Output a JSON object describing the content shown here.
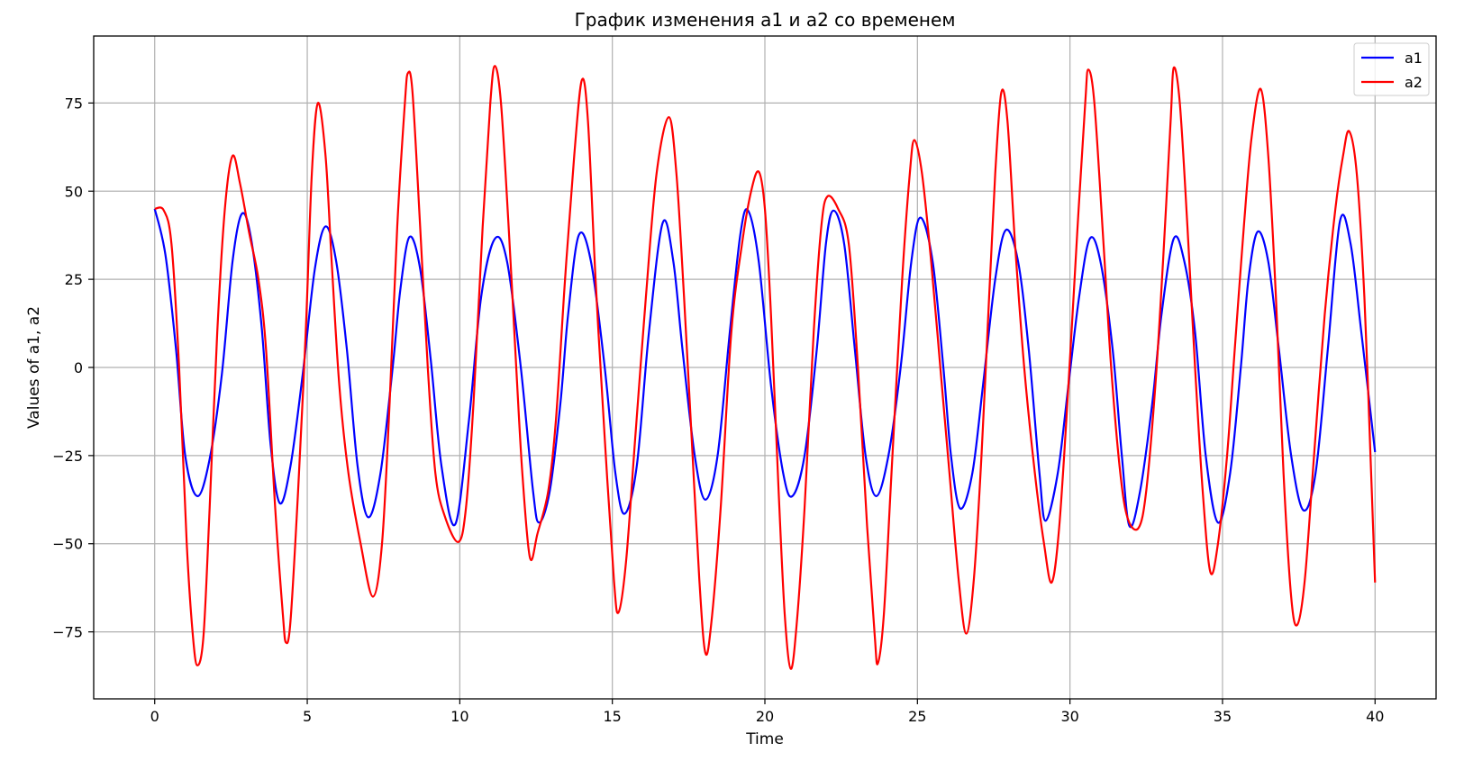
{
  "chart_data": {
    "type": "line",
    "title": "График изменения a1 и a2 со временем",
    "xlabel": "Time",
    "ylabel": "Values of a1, a2",
    "xlim": [
      -2,
      42
    ],
    "ylim": [
      -94,
      94
    ],
    "xticks": [
      0,
      5,
      10,
      15,
      20,
      25,
      30,
      35,
      40
    ],
    "yticks": [
      -75,
      -50,
      -25,
      0,
      25,
      50,
      75
    ],
    "ytick_labels": [
      "−75",
      "−50",
      "−25",
      "0",
      "25",
      "50",
      "75"
    ],
    "grid": true,
    "legend_position": "top-right",
    "series": [
      {
        "name": "a1",
        "color": "#0000ff",
        "points": [
          [
            0,
            45
          ],
          [
            0.35,
            32
          ],
          [
            0.7,
            5
          ],
          [
            1.0,
            -25
          ],
          [
            1.4,
            -36.5
          ],
          [
            1.8,
            -26
          ],
          [
            2.2,
            -2
          ],
          [
            2.55,
            30
          ],
          [
            2.85,
            43.5
          ],
          [
            3.15,
            37
          ],
          [
            3.5,
            12
          ],
          [
            3.8,
            -22
          ],
          [
            4.1,
            -38.5
          ],
          [
            4.45,
            -28
          ],
          [
            4.85,
            -2
          ],
          [
            5.25,
            28
          ],
          [
            5.6,
            40
          ],
          [
            5.95,
            30
          ],
          [
            6.3,
            5
          ],
          [
            6.65,
            -28
          ],
          [
            7.0,
            -42.5
          ],
          [
            7.4,
            -30
          ],
          [
            7.8,
            0
          ],
          [
            8.05,
            22
          ],
          [
            8.35,
            37
          ],
          [
            8.7,
            28
          ],
          [
            9.05,
            2
          ],
          [
            9.4,
            -28
          ],
          [
            9.85,
            -44.5
          ],
          [
            10.3,
            -15
          ],
          [
            10.7,
            20
          ],
          [
            11.15,
            36.5
          ],
          [
            11.55,
            30
          ],
          [
            12.0,
            0
          ],
          [
            12.4,
            -35
          ],
          [
            12.6,
            -44
          ],
          [
            12.95,
            -35
          ],
          [
            13.3,
            -10
          ],
          [
            13.55,
            15
          ],
          [
            13.9,
            37.5
          ],
          [
            14.3,
            30
          ],
          [
            14.75,
            0
          ],
          [
            15.1,
            -30
          ],
          [
            15.4,
            -41.5
          ],
          [
            15.8,
            -28
          ],
          [
            16.2,
            10
          ],
          [
            16.65,
            41
          ],
          [
            17.0,
            30
          ],
          [
            17.3,
            5
          ],
          [
            17.7,
            -25
          ],
          [
            18.05,
            -37.5
          ],
          [
            18.45,
            -25
          ],
          [
            18.85,
            10
          ],
          [
            19.2,
            38
          ],
          [
            19.45,
            44.5
          ],
          [
            19.8,
            30
          ],
          [
            20.2,
            -5
          ],
          [
            20.6,
            -30
          ],
          [
            20.9,
            -36.5
          ],
          [
            21.3,
            -25
          ],
          [
            21.7,
            5
          ],
          [
            22.0,
            35
          ],
          [
            22.25,
            44.5
          ],
          [
            22.6,
            35
          ],
          [
            22.95,
            5
          ],
          [
            23.3,
            -25
          ],
          [
            23.65,
            -36.5
          ],
          [
            24.05,
            -25
          ],
          [
            24.45,
            0
          ],
          [
            24.8,
            30
          ],
          [
            25.1,
            42.5
          ],
          [
            25.5,
            30
          ],
          [
            25.85,
            0
          ],
          [
            26.1,
            -25
          ],
          [
            26.4,
            -40
          ],
          [
            26.8,
            -30
          ],
          [
            27.15,
            -5
          ],
          [
            27.55,
            25
          ],
          [
            27.9,
            39
          ],
          [
            28.3,
            30
          ],
          [
            28.65,
            5
          ],
          [
            29.0,
            -30
          ],
          [
            29.2,
            -43.5
          ],
          [
            29.6,
            -30
          ],
          [
            29.95,
            -5
          ],
          [
            30.3,
            20
          ],
          [
            30.65,
            36.5
          ],
          [
            31.0,
            30
          ],
          [
            31.4,
            5
          ],
          [
            31.7,
            -25
          ],
          [
            31.95,
            -45
          ],
          [
            32.3,
            -35
          ],
          [
            32.7,
            -10
          ],
          [
            33.0,
            15
          ],
          [
            33.4,
            36.5
          ],
          [
            33.75,
            30
          ],
          [
            34.1,
            10
          ],
          [
            34.45,
            -25
          ],
          [
            34.85,
            -44
          ],
          [
            35.25,
            -30
          ],
          [
            35.6,
            0
          ],
          [
            35.85,
            25
          ],
          [
            36.15,
            38.5
          ],
          [
            36.5,
            30
          ],
          [
            36.85,
            5
          ],
          [
            37.25,
            -25
          ],
          [
            37.65,
            -40.5
          ],
          [
            38.05,
            -30
          ],
          [
            38.45,
            5
          ],
          [
            38.85,
            41.5
          ],
          [
            39.2,
            35
          ],
          [
            39.55,
            10
          ],
          [
            40.0,
            -24
          ]
        ]
      },
      {
        "name": "a2",
        "color": "#ff0000",
        "points": [
          [
            0,
            45
          ],
          [
            0.3,
            44.5
          ],
          [
            0.55,
            35
          ],
          [
            0.8,
            0
          ],
          [
            1.05,
            -50
          ],
          [
            1.25,
            -76
          ],
          [
            1.4,
            -84.5
          ],
          [
            1.6,
            -76
          ],
          [
            1.8,
            -40
          ],
          [
            2.05,
            10
          ],
          [
            2.3,
            45
          ],
          [
            2.55,
            60
          ],
          [
            2.8,
            52
          ],
          [
            3.1,
            38
          ],
          [
            3.4,
            25
          ],
          [
            3.65,
            5
          ],
          [
            3.95,
            -40
          ],
          [
            4.2,
            -70
          ],
          [
            4.3,
            -78
          ],
          [
            4.45,
            -72
          ],
          [
            4.7,
            -35
          ],
          [
            4.95,
            10
          ],
          [
            5.15,
            55
          ],
          [
            5.35,
            75
          ],
          [
            5.6,
            60
          ],
          [
            5.8,
            30
          ],
          [
            6.05,
            -5
          ],
          [
            6.35,
            -30
          ],
          [
            6.75,
            -50
          ],
          [
            7.15,
            -65
          ],
          [
            7.45,
            -50
          ],
          [
            7.7,
            -10
          ],
          [
            7.95,
            40
          ],
          [
            8.2,
            75
          ],
          [
            8.3,
            83.5
          ],
          [
            8.45,
            78
          ],
          [
            8.7,
            40
          ],
          [
            8.95,
            0
          ],
          [
            9.2,
            -30
          ],
          [
            9.5,
            -42
          ],
          [
            9.95,
            -49.5
          ],
          [
            10.2,
            -40
          ],
          [
            10.45,
            -10
          ],
          [
            10.75,
            40
          ],
          [
            11.0,
            75
          ],
          [
            11.15,
            85.5
          ],
          [
            11.35,
            75
          ],
          [
            11.6,
            40
          ],
          [
            11.85,
            0
          ],
          [
            12.05,
            -30
          ],
          [
            12.3,
            -54
          ],
          [
            12.55,
            -47
          ],
          [
            12.9,
            -35
          ],
          [
            13.15,
            -15
          ],
          [
            13.45,
            25
          ],
          [
            13.75,
            60
          ],
          [
            14.0,
            81.5
          ],
          [
            14.2,
            70
          ],
          [
            14.45,
            25
          ],
          [
            14.75,
            -20
          ],
          [
            15.05,
            -60
          ],
          [
            15.2,
            -69.5
          ],
          [
            15.45,
            -55
          ],
          [
            15.75,
            -20
          ],
          [
            16.1,
            20
          ],
          [
            16.45,
            55
          ],
          [
            16.85,
            71
          ],
          [
            17.1,
            55
          ],
          [
            17.35,
            20
          ],
          [
            17.6,
            -20
          ],
          [
            17.85,
            -60
          ],
          [
            18.05,
            -81
          ],
          [
            18.25,
            -72
          ],
          [
            18.55,
            -40
          ],
          [
            18.9,
            10
          ],
          [
            19.25,
            35
          ],
          [
            19.55,
            50
          ],
          [
            19.8,
            55.5
          ],
          [
            20.0,
            45
          ],
          [
            20.2,
            15
          ],
          [
            20.45,
            -35
          ],
          [
            20.65,
            -70
          ],
          [
            20.85,
            -85.5
          ],
          [
            21.05,
            -72
          ],
          [
            21.3,
            -40
          ],
          [
            21.6,
            10
          ],
          [
            21.85,
            40
          ],
          [
            22.05,
            48.5
          ],
          [
            22.4,
            45
          ],
          [
            22.75,
            35
          ],
          [
            23.05,
            0
          ],
          [
            23.35,
            -45
          ],
          [
            23.6,
            -76
          ],
          [
            23.7,
            -84
          ],
          [
            23.9,
            -70
          ],
          [
            24.15,
            -30
          ],
          [
            24.5,
            25
          ],
          [
            24.75,
            55
          ],
          [
            24.9,
            64.5
          ],
          [
            25.15,
            55
          ],
          [
            25.45,
            30
          ],
          [
            25.75,
            0
          ],
          [
            26.05,
            -30
          ],
          [
            26.35,
            -60
          ],
          [
            26.6,
            -75.5
          ],
          [
            26.85,
            -60
          ],
          [
            27.1,
            -25
          ],
          [
            27.35,
            20
          ],
          [
            27.55,
            55
          ],
          [
            27.75,
            78
          ],
          [
            27.95,
            70
          ],
          [
            28.2,
            35
          ],
          [
            28.5,
            0
          ],
          [
            28.85,
            -30
          ],
          [
            29.15,
            -50
          ],
          [
            29.4,
            -61
          ],
          [
            29.65,
            -45
          ],
          [
            29.95,
            -5
          ],
          [
            30.25,
            40
          ],
          [
            30.5,
            75
          ],
          [
            30.6,
            84.5
          ],
          [
            30.8,
            75
          ],
          [
            31.1,
            35
          ],
          [
            31.35,
            0
          ],
          [
            31.65,
            -30
          ],
          [
            31.9,
            -43
          ],
          [
            32.25,
            -45.5
          ],
          [
            32.5,
            -35
          ],
          [
            32.8,
            -5
          ],
          [
            33.05,
            30
          ],
          [
            33.3,
            70
          ],
          [
            33.4,
            85
          ],
          [
            33.6,
            75
          ],
          [
            33.85,
            40
          ],
          [
            34.1,
            0
          ],
          [
            34.35,
            -35
          ],
          [
            34.6,
            -58
          ],
          [
            34.85,
            -50
          ],
          [
            35.15,
            -25
          ],
          [
            35.4,
            5
          ],
          [
            35.7,
            40
          ],
          [
            35.95,
            65
          ],
          [
            36.25,
            79
          ],
          [
            36.5,
            60
          ],
          [
            36.75,
            20
          ],
          [
            37.0,
            -30
          ],
          [
            37.25,
            -65
          ],
          [
            37.45,
            -73
          ],
          [
            37.7,
            -60
          ],
          [
            38.0,
            -25
          ],
          [
            38.35,
            15
          ],
          [
            38.7,
            45
          ],
          [
            38.95,
            60
          ],
          [
            39.15,
            67
          ],
          [
            39.4,
            55
          ],
          [
            39.65,
            20
          ],
          [
            39.85,
            -25
          ],
          [
            40.0,
            -61
          ]
        ]
      }
    ]
  }
}
